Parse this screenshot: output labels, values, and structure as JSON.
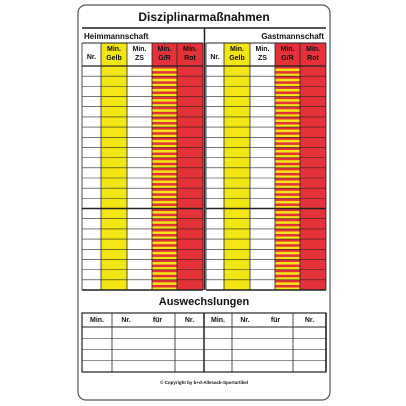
{
  "title": "Disziplinarmaßnahmen",
  "teams": [
    "Heimmannschaft",
    "Gastmannschaft"
  ],
  "columns": [
    [
      "Nr."
    ],
    [
      "Min.",
      "Gelb"
    ],
    [
      "Min.",
      "ZS"
    ],
    [
      "Min.",
      "G/R"
    ],
    [
      "Min.",
      "Rot"
    ]
  ],
  "substitutions": {
    "title": "Auswechslungen",
    "columns": [
      "Min.",
      "Nr.",
      "für",
      "Nr."
    ]
  },
  "copyright": "© Copyright by b+d-Allesack-Sportartikel"
}
